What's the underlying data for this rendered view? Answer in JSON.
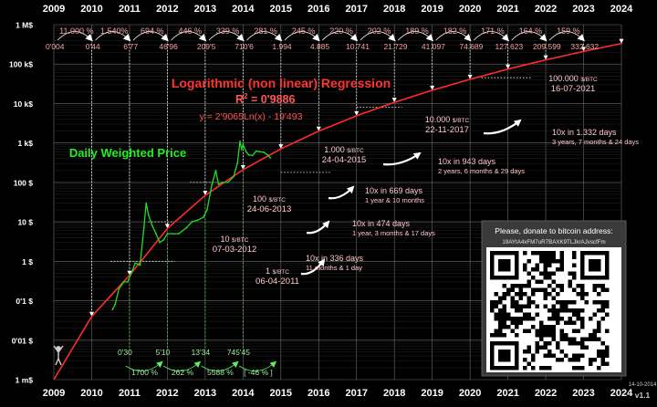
{
  "chart_data": {
    "type": "line",
    "y_scale": "log",
    "x_ticks": [
      "2009",
      "2010",
      "2011",
      "2012",
      "2013",
      "2014",
      "2015",
      "2016",
      "2017",
      "2018",
      "2019",
      "2020",
      "2021",
      "2022",
      "2023",
      "2024"
    ],
    "y_ticks": [
      "1 M$",
      "100 k$",
      "10 k$",
      "1 k$",
      "100 $",
      "10 $",
      "1 $",
      "0'1 $",
      "0'01 $",
      "1 m$"
    ],
    "regression": {
      "title": "Logarithmic (non linear) Regression",
      "r2_label": "R",
      "r2_sup": "2",
      "r2_value": " = 0'9886",
      "equation": "y = 2'9065Ln(x) - 19'493",
      "y_at_year_start": [
        0.001,
        0.04,
        0.44,
        6.77,
        46.96,
        209.5,
        710.6,
        1994,
        4885,
        10741,
        21729,
        41097,
        74689,
        127623,
        209599,
        332632
      ]
    },
    "series": [
      {
        "name": "Daily Weighted Price",
        "color": "#22dd22",
        "points": [
          [
            2010.55,
            0.06
          ],
          [
            2010.62,
            0.08
          ],
          [
            2010.72,
            0.2
          ],
          [
            2010.85,
            0.3
          ],
          [
            2010.95,
            0.3
          ],
          [
            2011.05,
            0.5
          ],
          [
            2011.15,
            0.9
          ],
          [
            2011.28,
            0.8
          ],
          [
            2011.38,
            7
          ],
          [
            2011.44,
            30
          ],
          [
            2011.5,
            15
          ],
          [
            2011.6,
            8
          ],
          [
            2011.7,
            5
          ],
          [
            2011.8,
            3
          ],
          [
            2011.9,
            3.5
          ],
          [
            2012.0,
            5
          ],
          [
            2012.15,
            5
          ],
          [
            2012.3,
            5
          ],
          [
            2012.5,
            7
          ],
          [
            2012.65,
            10
          ],
          [
            2012.8,
            11
          ],
          [
            2012.95,
            13
          ],
          [
            2013.05,
            20
          ],
          [
            2013.18,
            90
          ],
          [
            2013.28,
            200
          ],
          [
            2013.35,
            90
          ],
          [
            2013.45,
            100
          ],
          [
            2013.6,
            100
          ],
          [
            2013.75,
            140
          ],
          [
            2013.85,
            300
          ],
          [
            2013.92,
            1100
          ],
          [
            2013.96,
            700
          ],
          [
            2014.0,
            900
          ],
          [
            2014.08,
            600
          ],
          [
            2014.15,
            500
          ],
          [
            2014.25,
            480
          ],
          [
            2014.35,
            620
          ],
          [
            2014.45,
            600
          ],
          [
            2014.55,
            580
          ],
          [
            2014.65,
            500
          ],
          [
            2014.72,
            420
          ]
        ]
      }
    ],
    "top_percent_labels": [
      "11.000 %",
      "1.540%",
      "694 %",
      "446 %",
      "339 %",
      "281 %",
      "245 %",
      "220 %",
      "202 %",
      "189 %",
      "182 %",
      "171 %",
      "164 %",
      "159 %"
    ],
    "top_value_labels": [
      "0'004",
      "0'44",
      "6'77",
      "46'96",
      "209'5",
      "710'6",
      "1.994",
      "4.885",
      "10.741",
      "21.729",
      "41.097",
      "74.689",
      "127.623",
      "209.599",
      "332.632"
    ],
    "bottom_value_labels": [
      "0'30",
      "5'10",
      "13'34",
      "745'45"
    ],
    "bottom_percent_labels": [
      "1700 %",
      "262 %",
      "5588 %",
      "[ -46 % ]"
    ],
    "milestones": [
      {
        "price_prefix": "1 ",
        "price_unit": "$/BTC",
        "date": "06-04-2011",
        "duration": "10x in 336 days",
        "detail": "11 months & 1 day"
      },
      {
        "price_prefix": "10 ",
        "price_unit": "$/BTC",
        "date": "07-03-2012",
        "duration": "10x in 474 days",
        "detail": "1 year, 3 months & 17 days"
      },
      {
        "price_prefix": "100 ",
        "price_unit": "$/BTC",
        "date": "24-06-2013",
        "duration": "10x in 669 days",
        "detail": "1 year & 10 months"
      },
      {
        "price_prefix": "1.000 ",
        "price_unit": "$/BTC",
        "date": "24-04-2015",
        "duration": "10x in 943 days",
        "detail": "2 years, 6 months & 29 days"
      },
      {
        "price_prefix": "10.000 ",
        "price_unit": "$/BTC",
        "date": "22-11-2017",
        "duration": "10x in 1.332 days",
        "detail": "3 years, 7 months & 24 days"
      },
      {
        "price_prefix": "100.000 ",
        "price_unit": "$/BTC",
        "date": "16-07-2021",
        "duration": "",
        "detail": ""
      }
    ]
  },
  "donate": {
    "title": "Please, donate to bitcoin address:",
    "address": "19AYtA4xFM7uR7BAXK9TLJkrAJvscfFm"
  },
  "version": {
    "date": "14-10-2014",
    "label": "v1.1"
  }
}
